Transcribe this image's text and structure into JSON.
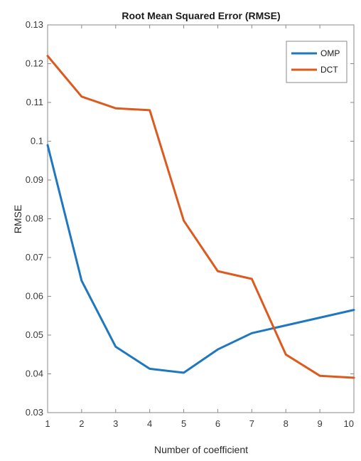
{
  "chart_data": {
    "type": "line",
    "title": "Root Mean Squared Error (RMSE)",
    "xlabel": "Number of coefficient",
    "ylabel": "RMSE",
    "x": [
      1,
      2,
      3,
      4,
      5,
      6,
      7,
      8,
      9,
      10
    ],
    "xlim": [
      1,
      10
    ],
    "ylim": [
      0.03,
      0.13
    ],
    "xticks": [
      "1",
      "2",
      "3",
      "4",
      "5",
      "6",
      "7",
      "8",
      "9",
      "10"
    ],
    "yticks": [
      {
        "value": 0.03,
        "label": "0.03"
      },
      {
        "value": 0.04,
        "label": "0.04"
      },
      {
        "value": 0.05,
        "label": "0.05"
      },
      {
        "value": 0.06,
        "label": "0.06"
      },
      {
        "value": 0.07,
        "label": "0.07"
      },
      {
        "value": 0.08,
        "label": "0.08"
      },
      {
        "value": 0.09,
        "label": "0.09"
      },
      {
        "value": 0.1,
        "label": "0.1"
      },
      {
        "value": 0.11,
        "label": "0.11"
      },
      {
        "value": 0.12,
        "label": "0.12"
      },
      {
        "value": 0.13,
        "label": "0.13"
      }
    ],
    "grid": false,
    "legend": "top-right",
    "series": [
      {
        "name": "OMP",
        "color": "#1f77c0",
        "values": [
          0.099,
          0.064,
          0.047,
          0.0413,
          0.0403,
          0.0463,
          0.0505,
          0.0525,
          0.0545,
          0.0565
        ]
      },
      {
        "name": "DCT",
        "color": "#dd5a1e",
        "values": [
          0.122,
          0.1115,
          0.1085,
          0.108,
          0.0795,
          0.0665,
          0.0645,
          0.045,
          0.0395,
          0.039
        ]
      }
    ]
  }
}
